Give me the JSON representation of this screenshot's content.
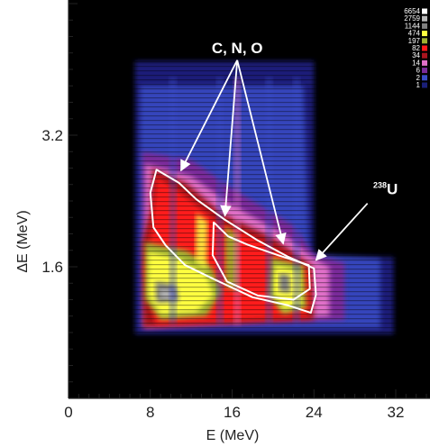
{
  "chart_data": {
    "type": "heatmap",
    "xlabel": "E (MeV)",
    "ylabel": "ΔE (MeV)",
    "xlim": [
      0,
      35
    ],
    "ylim": [
      0,
      4.8
    ],
    "x_ticks": [
      0,
      8,
      16,
      24,
      32
    ],
    "y_ticks": [
      1.6,
      3.2
    ],
    "x_tick_labels": [
      "0",
      "8",
      "16",
      "24",
      "32"
    ],
    "y_tick_labels": [
      "1.6",
      "3.2"
    ],
    "color_scale": {
      "placement": "top-right",
      "levels": [
        {
          "value": 6654,
          "label": "6654",
          "color": "#ffffff"
        },
        {
          "value": 2759,
          "label": "2759",
          "color": "#b8b8b8"
        },
        {
          "value": 1144,
          "label": "1144",
          "color": "#808080"
        },
        {
          "value": 474,
          "label": "474",
          "color": "#ffff40"
        },
        {
          "value": 197,
          "label": "197",
          "color": "#a0b030"
        },
        {
          "value": 82,
          "label": "82",
          "color": "#ff1a1a"
        },
        {
          "value": 34,
          "label": "34",
          "color": "#a8141e"
        },
        {
          "value": 14,
          "label": "14",
          "color": "#e070c8"
        },
        {
          "value": 6,
          "label": "6",
          "color": "#7a2a9a"
        },
        {
          "value": 2,
          "label": "2",
          "color": "#3a4cc8"
        },
        {
          "value": 1,
          "label": "1",
          "color": "#1a1f78"
        }
      ]
    },
    "regions": [
      {
        "label": "C, N, O",
        "outline": [
          [
            8.6,
            2.78
          ],
          [
            10.8,
            2.62
          ],
          [
            12.5,
            2.42
          ],
          [
            15.2,
            2.18
          ],
          [
            18.5,
            1.92
          ],
          [
            21.5,
            1.72
          ],
          [
            24,
            1.58
          ],
          [
            24.2,
            1.26
          ],
          [
            23.7,
            1.04
          ],
          [
            21.5,
            1.13
          ],
          [
            18,
            1.23
          ],
          [
            14.2,
            1.45
          ],
          [
            11.4,
            1.62
          ],
          [
            9.5,
            1.86
          ],
          [
            8.3,
            2.08
          ],
          [
            8.0,
            2.5
          ]
        ]
      },
      {
        "label": "238U",
        "outline": [
          [
            14.2,
            2.14
          ],
          [
            15.6,
            1.97
          ],
          [
            17.5,
            1.87
          ],
          [
            20.5,
            1.74
          ],
          [
            23.5,
            1.62
          ],
          [
            23.6,
            1.33
          ],
          [
            22.0,
            1.2
          ],
          [
            18.5,
            1.25
          ],
          [
            15.5,
            1.42
          ],
          [
            14.1,
            1.74
          ]
        ]
      }
    ],
    "annotations": [
      {
        "text": "C, N, O",
        "x": 16.5,
        "y": 4.2,
        "arrow_targets": [
          [
            11.0,
            2.77
          ],
          [
            15.3,
            2.22
          ],
          [
            21.0,
            1.88
          ]
        ]
      },
      {
        "text": "238",
        "sup": true,
        "text_main": "U",
        "x": 31.0,
        "y": 2.48,
        "arrow_target": [
          24.2,
          1.68
        ]
      }
    ]
  }
}
